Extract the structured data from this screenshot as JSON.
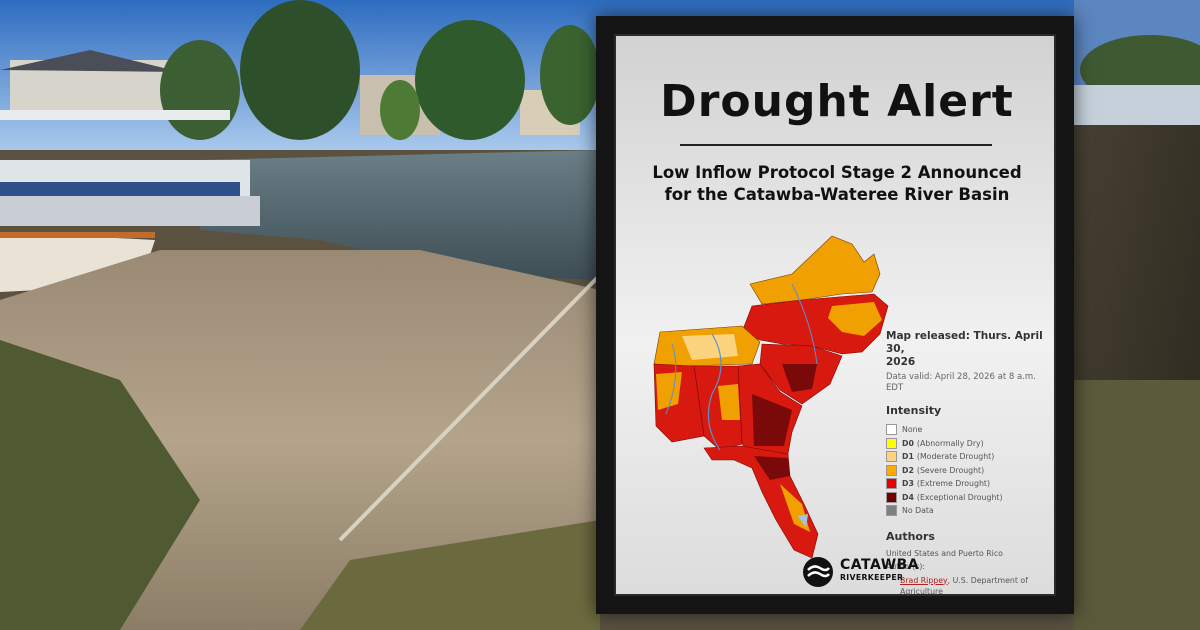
{
  "poster": {
    "title": "Drought Alert",
    "subtitle_line1": "Low Inflow Protocol Stage 2 Announced",
    "subtitle_line2": "for the Catawba-Wateree River Basin",
    "map_released_line1": "Map released: Thurs. April 30,",
    "map_released_line2": "2026",
    "data_valid_line1": "Data valid: April 28, 2026 at 8 a.m.",
    "data_valid_line2": "EDT",
    "intensity_title": "Intensity",
    "legend": [
      {
        "code": "",
        "label": "None",
        "color": "#ffffff"
      },
      {
        "code": "D0",
        "label": "(Abnormally Dry)",
        "color": "#ffff00"
      },
      {
        "code": "D1",
        "label": "(Moderate Drought)",
        "color": "#fcd37f"
      },
      {
        "code": "D2",
        "label": "(Severe Drought)",
        "color": "#ffaa00"
      },
      {
        "code": "D3",
        "label": "(Extreme Drought)",
        "color": "#e60000"
      },
      {
        "code": "D4",
        "label": "(Exceptional Drought)",
        "color": "#730000"
      },
      {
        "code": "",
        "label": "No Data",
        "color": "#808080"
      }
    ],
    "authors_title": "Authors",
    "authors_org": "United States and Puerto Rico",
    "authors_label": "Author(s):",
    "author_name": "Brad Rippey",
    "author_affiliation": ", U.S. Department of Agriculture",
    "logo_line1": "CATAWBA",
    "logo_line2": "RIVERKEEPER"
  },
  "colors": {
    "poster_frame": "#141414",
    "map_d2": "#f0a000",
    "map_d3": "#d8190f",
    "map_d4": "#7a0a0a",
    "link": "#b22222"
  }
}
